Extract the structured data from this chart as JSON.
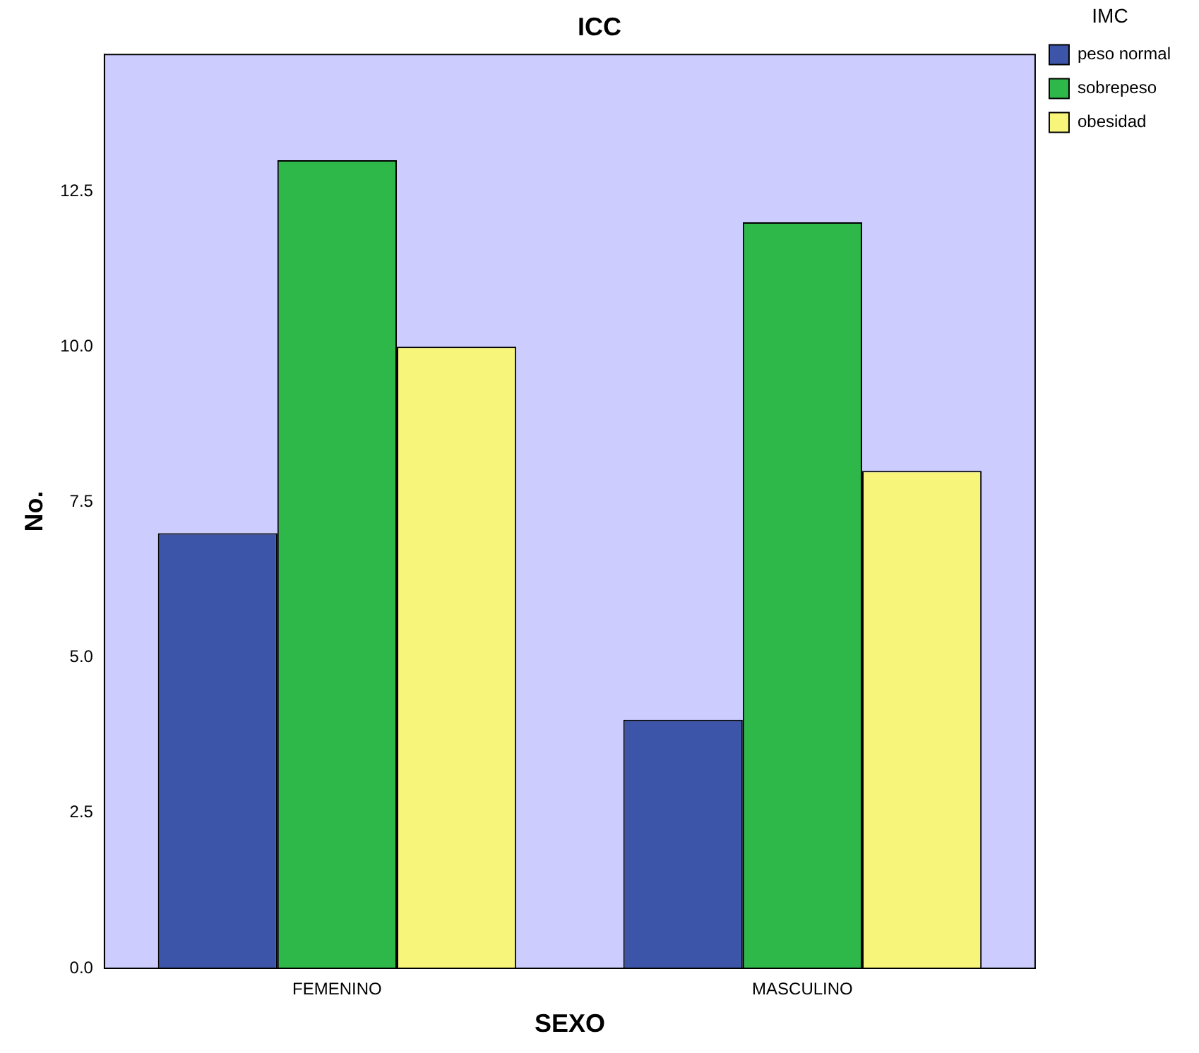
{
  "chart_data": {
    "type": "bar",
    "title": "ICC",
    "xlabel": "SEXO",
    "ylabel": "No.",
    "legend_title": "IMC",
    "legend": "top right",
    "categories": [
      "FEMENINO",
      "MASCULINO"
    ],
    "series": [
      {
        "name": "peso normal",
        "color": "#3d55a8",
        "values": [
          7,
          4
        ]
      },
      {
        "name": "sobrepeso",
        "color": "#2fb84a",
        "values": [
          13,
          12
        ]
      },
      {
        "name": "obesidad",
        "color": "#f8f67a",
        "values": [
          10,
          8
        ]
      }
    ],
    "ylim": [
      0,
      14.7
    ],
    "yticks": [
      {
        "value": 0,
        "label": "0.0"
      },
      {
        "value": 2.5,
        "label": "2.5"
      },
      {
        "value": 5,
        "label": "5.0"
      },
      {
        "value": 7.5,
        "label": "7.5"
      },
      {
        "value": 10,
        "label": "10.0"
      },
      {
        "value": 12.5,
        "label": "12.5"
      }
    ]
  }
}
